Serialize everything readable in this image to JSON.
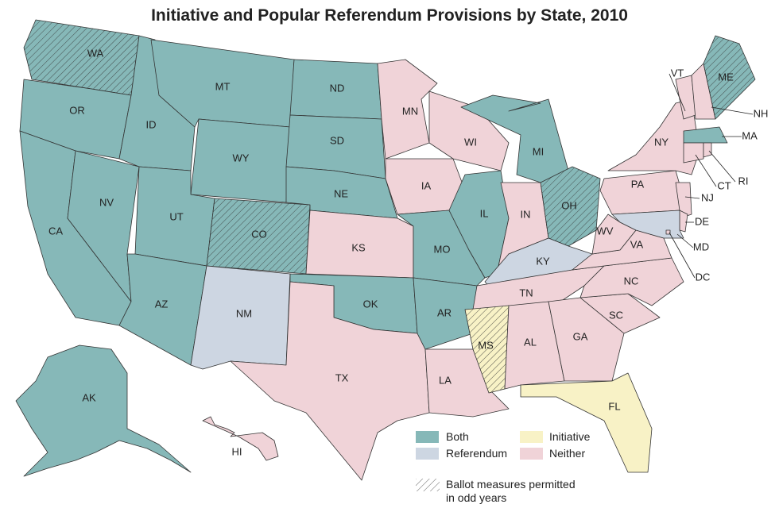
{
  "title": "Initiative and Popular Referendum Provisions by State, 2010",
  "colors": {
    "both": "#86b8b8",
    "referendum": "#cdd6e2",
    "initiative": "#f8f2c6",
    "neither": "#f0d3d8"
  },
  "legend": {
    "both": "Both",
    "referendum": "Referendum",
    "initiative": "Initiative",
    "neither": "Neither",
    "odd_years_line1": "Ballot measures permitted",
    "odd_years_line2": "in odd years"
  },
  "states": [
    {
      "abbr": "WA",
      "category": "both",
      "odd_years": true
    },
    {
      "abbr": "OR",
      "category": "both"
    },
    {
      "abbr": "CA",
      "category": "both"
    },
    {
      "abbr": "NV",
      "category": "both"
    },
    {
      "abbr": "ID",
      "category": "both"
    },
    {
      "abbr": "MT",
      "category": "both"
    },
    {
      "abbr": "WY",
      "category": "both"
    },
    {
      "abbr": "UT",
      "category": "both"
    },
    {
      "abbr": "CO",
      "category": "both",
      "odd_years": true
    },
    {
      "abbr": "AZ",
      "category": "both"
    },
    {
      "abbr": "NM",
      "category": "referendum"
    },
    {
      "abbr": "ND",
      "category": "both"
    },
    {
      "abbr": "SD",
      "category": "both"
    },
    {
      "abbr": "NE",
      "category": "both"
    },
    {
      "abbr": "KS",
      "category": "neither"
    },
    {
      "abbr": "OK",
      "category": "both"
    },
    {
      "abbr": "TX",
      "category": "neither"
    },
    {
      "abbr": "MN",
      "category": "neither"
    },
    {
      "abbr": "IA",
      "category": "neither"
    },
    {
      "abbr": "MO",
      "category": "both"
    },
    {
      "abbr": "AR",
      "category": "both"
    },
    {
      "abbr": "LA",
      "category": "neither"
    },
    {
      "abbr": "WI",
      "category": "neither"
    },
    {
      "abbr": "IL",
      "category": "both"
    },
    {
      "abbr": "MI",
      "category": "both"
    },
    {
      "abbr": "IN",
      "category": "neither"
    },
    {
      "abbr": "OH",
      "category": "both",
      "odd_years": true
    },
    {
      "abbr": "KY",
      "category": "referendum"
    },
    {
      "abbr": "TN",
      "category": "neither"
    },
    {
      "abbr": "MS",
      "category": "initiative",
      "odd_years": true
    },
    {
      "abbr": "AL",
      "category": "neither"
    },
    {
      "abbr": "GA",
      "category": "neither"
    },
    {
      "abbr": "FL",
      "category": "initiative"
    },
    {
      "abbr": "SC",
      "category": "neither"
    },
    {
      "abbr": "NC",
      "category": "neither"
    },
    {
      "abbr": "VA",
      "category": "neither"
    },
    {
      "abbr": "WV",
      "category": "neither"
    },
    {
      "abbr": "PA",
      "category": "neither"
    },
    {
      "abbr": "NY",
      "category": "neither"
    },
    {
      "abbr": "NJ",
      "category": "neither"
    },
    {
      "abbr": "DE",
      "category": "neither"
    },
    {
      "abbr": "MD",
      "category": "referendum"
    },
    {
      "abbr": "DC",
      "category": "neither"
    },
    {
      "abbr": "VT",
      "category": "neither"
    },
    {
      "abbr": "NH",
      "category": "neither"
    },
    {
      "abbr": "ME",
      "category": "both",
      "odd_years": true
    },
    {
      "abbr": "MA",
      "category": "both"
    },
    {
      "abbr": "CT",
      "category": "neither"
    },
    {
      "abbr": "RI",
      "category": "neither"
    },
    {
      "abbr": "AK",
      "category": "both"
    },
    {
      "abbr": "HI",
      "category": "neither"
    }
  ]
}
